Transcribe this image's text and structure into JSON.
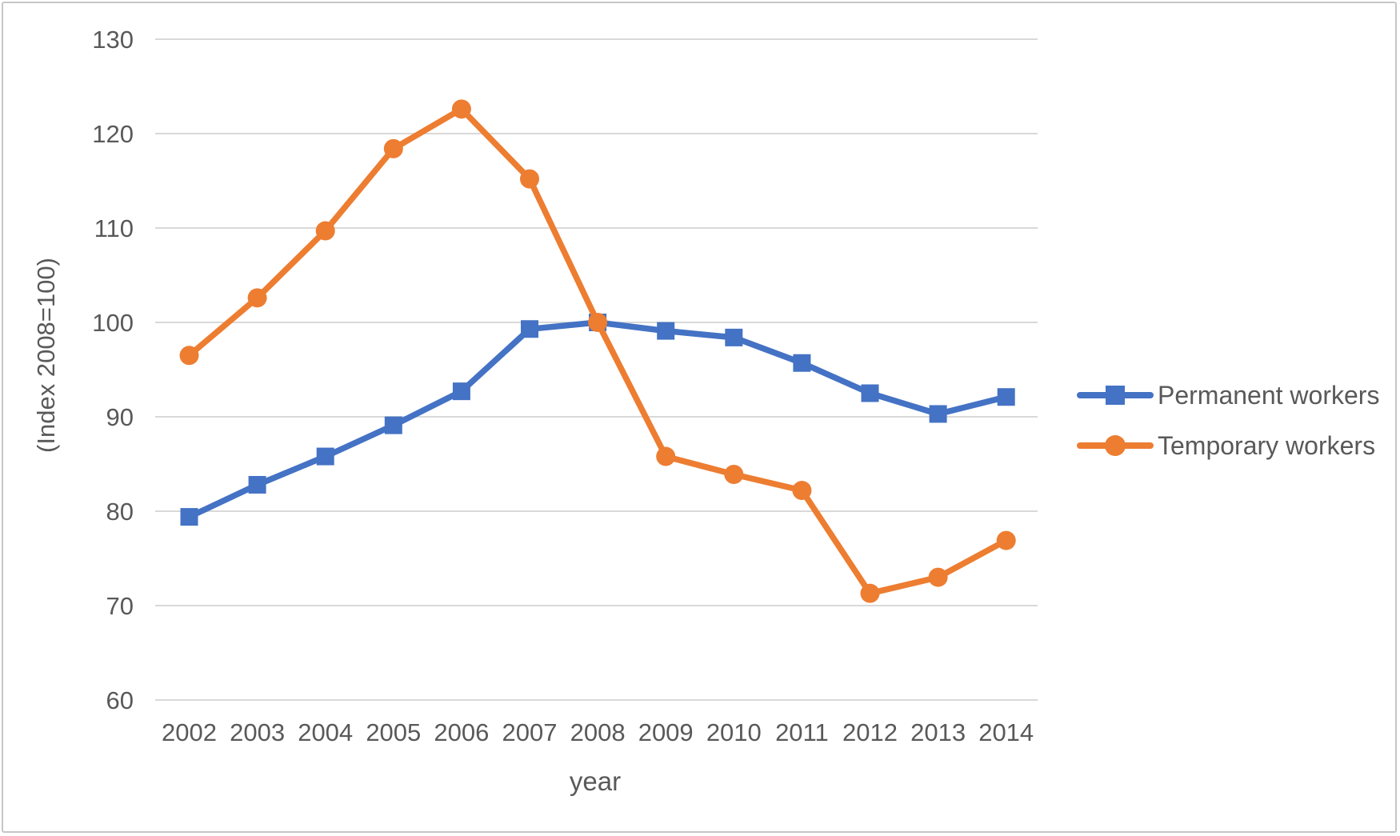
{
  "chart_data": {
    "type": "line",
    "title": "",
    "xlabel": "year",
    "ylabel": "(Index 2008=100)",
    "categories": [
      "2002",
      "2003",
      "2004",
      "2005",
      "2006",
      "2007",
      "2008",
      "2009",
      "2010",
      "2011",
      "2012",
      "2013",
      "2014"
    ],
    "yticks": [
      60,
      70,
      80,
      90,
      100,
      110,
      120,
      130
    ],
    "ylim": [
      60,
      130
    ],
    "grid": "horizontal",
    "legend_position": "right",
    "series": [
      {
        "name": "Permanent workers",
        "color": "#4472C4",
        "marker": "square",
        "values": [
          79.4,
          82.8,
          85.8,
          89.1,
          92.7,
          99.3,
          100.0,
          99.1,
          98.4,
          95.7,
          92.5,
          90.3,
          92.1
        ]
      },
      {
        "name": "Temporary workers",
        "color": "#ED7D31",
        "marker": "circle",
        "values": [
          96.5,
          102.6,
          109.7,
          118.4,
          122.6,
          115.2,
          100.0,
          85.8,
          83.9,
          82.2,
          71.3,
          73.0,
          76.9
        ]
      }
    ],
    "colors": {
      "text": "#595959",
      "gridline": "#D9D9D9",
      "frame_border": "#C6C6C6",
      "background": "#FFFFFF"
    }
  }
}
